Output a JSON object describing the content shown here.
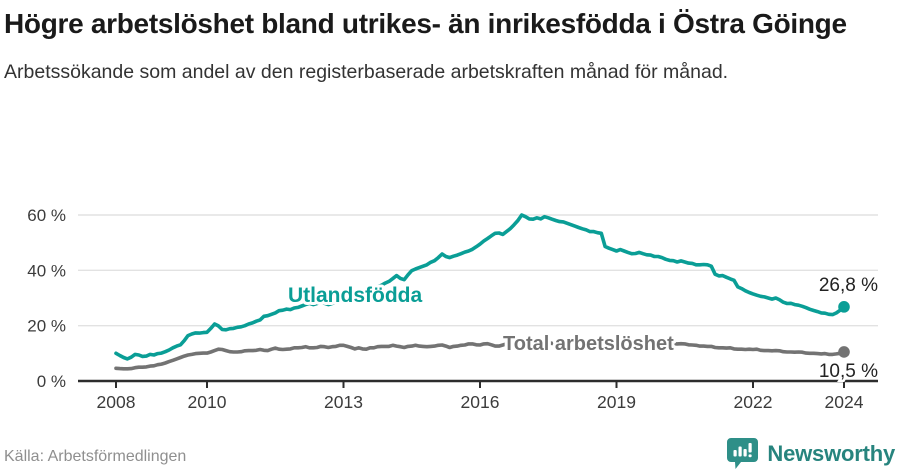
{
  "title": "Högre arbetslöshet bland utrikes- än inrikesfödda i Östra Göinge",
  "subtitle": "Arbetssökande som andel av den registerbaserade arbetskraften månad för månad.",
  "source": "Källa: Arbetsförmedlingen",
  "brand": {
    "name": "Newsworthy",
    "icon": "newsworthy-chart-bubble-icon",
    "icon_color": "#2e8f88",
    "text_color": "#27847e"
  },
  "colors": {
    "foreign_born_line": "#0a9e96",
    "total_line": "#737373",
    "grid": "#e2e2e2",
    "axis": "#2d2d2d",
    "tick_text": "#3c3c3c",
    "value_text": "#222222"
  },
  "chart_data": {
    "type": "line",
    "title": "Högre arbetslöshet bland utrikes- än inrikesfödda i Östra Göinge",
    "subtitle": "Arbetssökande som andel av den registerbaserade arbetskraften månad för månad.",
    "x_unit": "year-month",
    "x_start_year": 2008,
    "points_per_year": 12,
    "x_ticks": [
      "2008",
      "2010",
      "2013",
      "2016",
      "2019",
      "2022",
      "2024"
    ],
    "x_tick_years": [
      2008,
      2010,
      2013,
      2016,
      2019,
      2022,
      2024
    ],
    "y_ticks": [
      0,
      20,
      40,
      60
    ],
    "y_tick_labels": [
      "0 %",
      "20 %",
      "40 %",
      "60 %"
    ],
    "ylim": [
      0,
      65
    ],
    "grid": "horizontal",
    "legend_position": "inline-labels",
    "series": [
      {
        "name": "Utlandsfödda",
        "color": "#0a9e96",
        "end_value": 26.8,
        "end_label": "26,8 %",
        "values": [
          10.0,
          9.2,
          8.5,
          8.0,
          8.6,
          9.6,
          9.4,
          8.9,
          9.0,
          9.6,
          9.4,
          9.9,
          10.1,
          10.6,
          11.2,
          12.0,
          12.6,
          13.1,
          14.6,
          16.4,
          17.0,
          17.4,
          17.3,
          17.5,
          17.6,
          19.0,
          20.6,
          19.9,
          18.6,
          18.5,
          18.9,
          19.0,
          19.4,
          19.6,
          20.0,
          20.6,
          21.0,
          21.6,
          22.1,
          23.4,
          23.6,
          24.1,
          24.6,
          25.4,
          25.6,
          26.0,
          25.8,
          26.4,
          26.6,
          27.1,
          27.6,
          28.1,
          27.6,
          28.0,
          28.5,
          28.1,
          27.6,
          28.0,
          28.6,
          28.9,
          29.0,
          29.4,
          30.0,
          30.5,
          31.0,
          31.6,
          32.4,
          33.0,
          33.5,
          34.0,
          34.6,
          35.4,
          36.0,
          37.0,
          38.1,
          37.1,
          36.6,
          38.4,
          39.9,
          40.5,
          41.0,
          41.5,
          42.0,
          42.9,
          43.5,
          44.6,
          45.9,
          45.0,
          44.6,
          45.1,
          45.5,
          46.0,
          46.6,
          47.0,
          47.6,
          48.5,
          49.5,
          50.6,
          51.5,
          52.5,
          53.4,
          53.5,
          53.0,
          54.0,
          55.1,
          56.5,
          58.0,
          60.0,
          59.4,
          58.6,
          58.5,
          59.0,
          58.6,
          59.4,
          59.0,
          58.5,
          58.0,
          57.6,
          57.5,
          57.0,
          56.5,
          56.0,
          55.5,
          55.0,
          54.6,
          54.0,
          54.0,
          53.6,
          53.4,
          48.6,
          48.0,
          47.5,
          47.0,
          47.5,
          47.0,
          46.5,
          46.0,
          46.1,
          46.5,
          46.0,
          45.6,
          45.5,
          45.0,
          45.0,
          44.6,
          44.0,
          43.6,
          43.5,
          43.0,
          43.4,
          43.0,
          42.6,
          42.5,
          42.0,
          42.0,
          42.1,
          42.0,
          41.5,
          38.6,
          38.0,
          38.1,
          37.5,
          36.9,
          36.4,
          34.0,
          33.4,
          32.6,
          32.0,
          31.5,
          31.0,
          30.6,
          30.4,
          30.0,
          29.6,
          30.0,
          29.4,
          28.5,
          28.0,
          28.1,
          27.6,
          27.4,
          27.0,
          26.5,
          25.9,
          25.5,
          25.1,
          24.6,
          24.5,
          24.1,
          24.0,
          24.6,
          25.6,
          26.8
        ]
      },
      {
        "name": "Total arbetslöshet",
        "color": "#737373",
        "end_value": 10.5,
        "end_label": "10,5 %",
        "values": [
          4.6,
          4.5,
          4.4,
          4.4,
          4.5,
          4.8,
          5.0,
          5.0,
          5.1,
          5.4,
          5.5,
          5.9,
          6.1,
          6.5,
          7.0,
          7.5,
          8.0,
          8.5,
          9.0,
          9.4,
          9.6,
          9.9,
          10.0,
          10.1,
          10.1,
          10.5,
          11.0,
          11.5,
          11.4,
          11.0,
          10.6,
          10.5,
          10.5,
          10.6,
          10.9,
          11.0,
          11.0,
          11.1,
          11.4,
          11.1,
          11.0,
          11.5,
          11.9,
          11.5,
          11.4,
          11.5,
          11.6,
          12.0,
          12.0,
          12.1,
          12.4,
          12.0,
          12.0,
          12.1,
          12.5,
          12.4,
          12.1,
          12.4,
          12.5,
          12.9,
          12.9,
          12.5,
          12.1,
          11.6,
          12.0,
          11.6,
          11.5,
          12.0,
          12.0,
          12.4,
          12.5,
          12.5,
          12.5,
          12.9,
          12.6,
          12.4,
          12.1,
          12.5,
          12.6,
          12.9,
          12.6,
          12.5,
          12.4,
          12.5,
          12.6,
          12.9,
          13.0,
          12.6,
          12.1,
          12.5,
          12.6,
          12.9,
          13.0,
          13.4,
          13.4,
          13.1,
          13.0,
          13.4,
          13.5,
          13.1,
          12.6,
          12.6,
          13.0,
          13.4,
          13.5,
          13.5,
          13.6,
          13.9,
          13.6,
          13.9,
          14.0,
          13.6,
          13.5,
          13.9,
          14.0,
          13.6,
          13.5,
          13.5,
          13.4,
          13.5,
          13.4,
          13.5,
          13.4,
          13.1,
          13.0,
          13.1,
          13.0,
          12.9,
          12.6,
          12.5,
          12.5,
          12.6,
          12.5,
          12.6,
          12.5,
          12.4,
          12.1,
          12.4,
          12.5,
          12.4,
          12.1,
          12.4,
          12.5,
          12.6,
          12.9,
          13.0,
          13.4,
          13.5,
          13.4,
          13.5,
          13.4,
          13.1,
          13.0,
          12.9,
          12.6,
          12.6,
          12.5,
          12.5,
          12.1,
          12.0,
          12.0,
          11.9,
          12.0,
          11.6,
          11.5,
          11.5,
          11.4,
          11.5,
          11.4,
          11.5,
          11.1,
          11.0,
          11.0,
          10.9,
          11.0,
          10.9,
          10.6,
          10.5,
          10.5,
          10.4,
          10.5,
          10.4,
          10.1,
          10.0,
          10.0,
          9.9,
          9.8,
          9.9,
          9.6,
          9.6,
          9.8,
          10.0,
          10.5
        ]
      }
    ]
  }
}
